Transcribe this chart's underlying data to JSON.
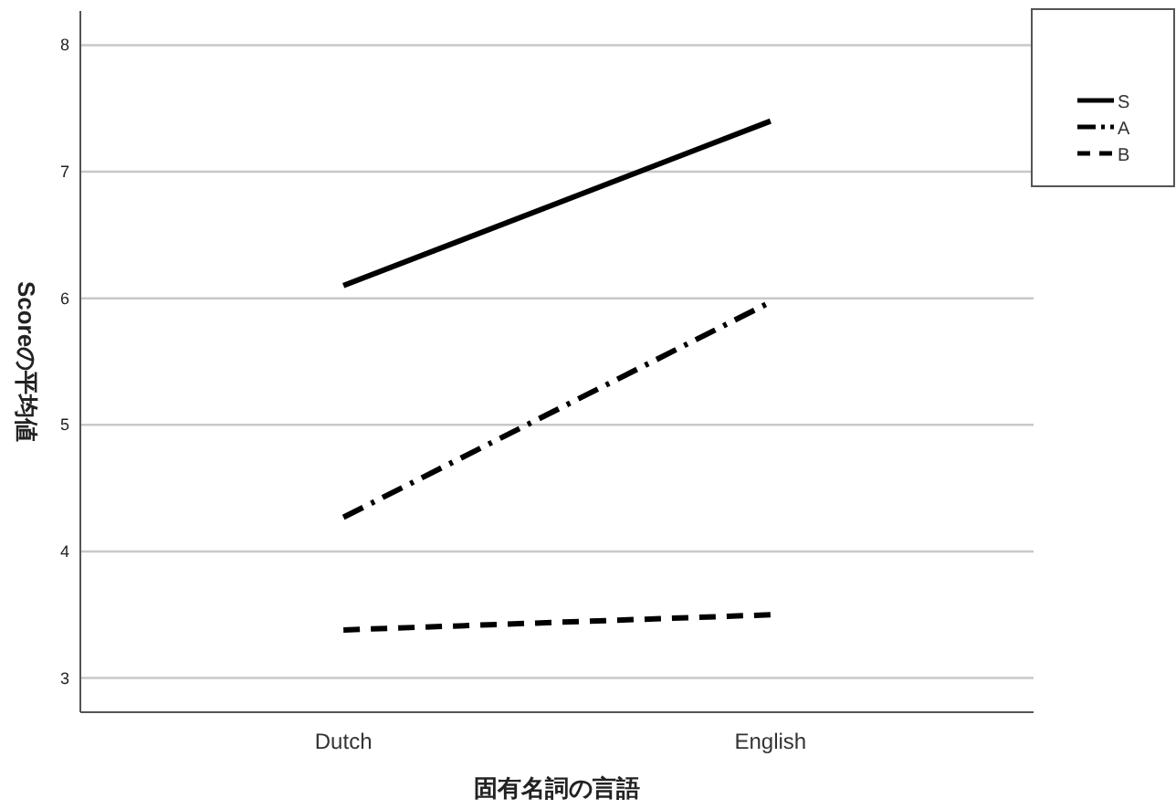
{
  "chart_data": {
    "type": "line",
    "xlabel": "固有名詞の言語",
    "ylabel": "Scoreの平均値",
    "categories": [
      "Dutch",
      "English"
    ],
    "series": [
      {
        "name": "S",
        "color": "#000000",
        "values": [
          6.1,
          7.4
        ],
        "line_style": "solid"
      },
      {
        "name": "A",
        "color": "#000000",
        "values": [
          4.27,
          5.97
        ],
        "line_style": "dashdot"
      },
      {
        "name": "B",
        "color": "#000000",
        "values": [
          3.38,
          3.5
        ],
        "line_style": "dashed"
      }
    ],
    "ylim": [
      2.73,
      8.27
    ],
    "yticks": [
      3,
      4,
      5,
      6,
      7,
      8
    ],
    "grid": "y",
    "legend": "top right",
    "marker": "none"
  }
}
